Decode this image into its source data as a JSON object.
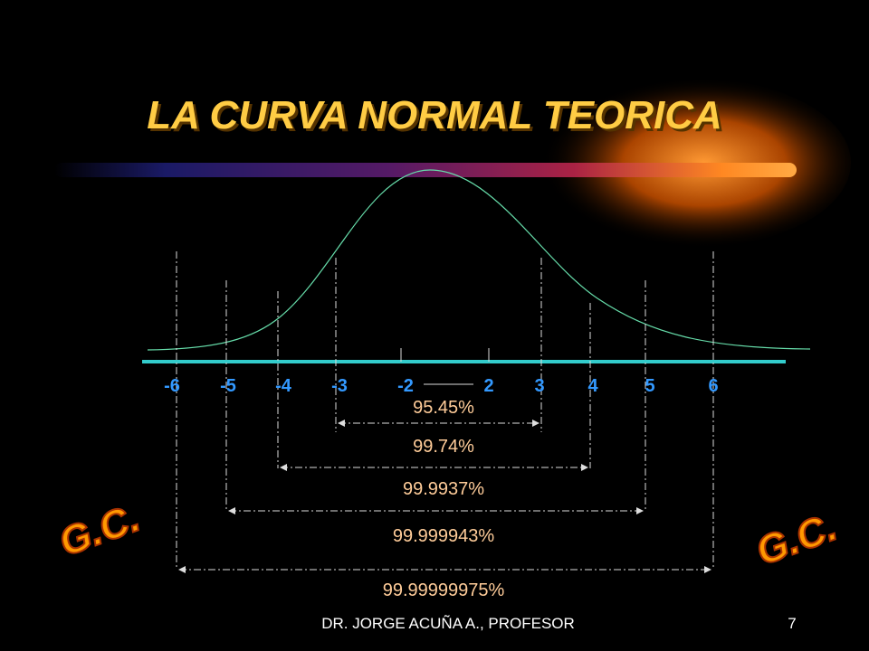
{
  "title": "LA CURVA NORMAL TEORICA",
  "axis_labels": [
    "-6",
    "-5",
    "-4",
    "-3",
    "-2",
    "2",
    "3",
    "4",
    "5",
    "6"
  ],
  "intervals": [
    {
      "label": "95.45%"
    },
    {
      "label": "99.74%"
    },
    {
      "label": "99.9937%"
    },
    {
      "label": "99.999943%"
    },
    {
      "label": "99.99999975%"
    }
  ],
  "logos": [
    "G.C.",
    "G.C."
  ],
  "footer": "DR.  JORGE ACUÑA A., PROFESOR",
  "page": "7"
}
